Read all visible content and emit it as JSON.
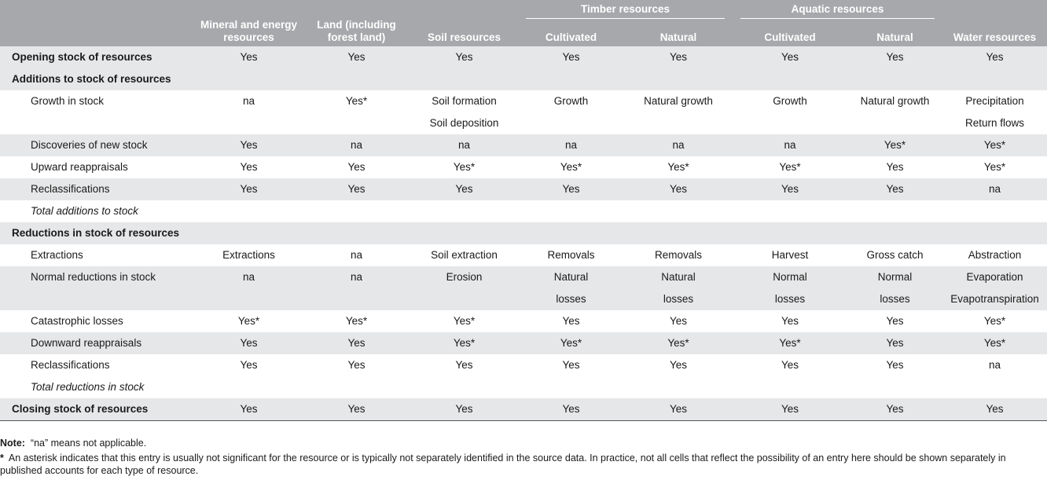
{
  "header": {
    "label_col": "",
    "mineral": "Mineral and energy resources",
    "land": "Land (including forest land)",
    "soil": "Soil resources",
    "timber_group": "Timber resources",
    "aquatic_group": "Aquatic resources",
    "timber_cultivated": "Cultivated",
    "timber_natural": "Natural",
    "aquatic_cultivated": "Cultivated",
    "aquatic_natural": "Natural",
    "water": "Water resources"
  },
  "rows": [
    {
      "label": "Opening stock of resources",
      "style": "bold",
      "cells": [
        "Yes",
        "Yes",
        "Yes",
        "Yes",
        "Yes",
        "Yes",
        "Yes",
        "Yes"
      ]
    },
    {
      "label": "Additions to stock of resources",
      "style": "bold",
      "cells": [
        "",
        "",
        "",
        "",
        "",
        "",
        "",
        ""
      ]
    },
    {
      "label": "Growth in stock",
      "style": "ind",
      "cells": [
        "na",
        "Yes*",
        "Soil formation",
        "Growth",
        "Natural growth",
        "Growth",
        "Natural growth",
        "Precipitation"
      ]
    },
    {
      "label": "",
      "style": "ind",
      "cells": [
        "",
        "",
        "Soil deposition",
        "",
        "",
        "",
        "",
        "Return flows"
      ]
    },
    {
      "label": "Discoveries of new stock",
      "style": "ind",
      "cells": [
        "Yes",
        "na",
        "na",
        "na",
        "na",
        "na",
        "Yes*",
        "Yes*"
      ]
    },
    {
      "label": "Upward reappraisals",
      "style": "ind",
      "cells": [
        "Yes",
        "Yes",
        "Yes*",
        "Yes*",
        "Yes*",
        "Yes*",
        "Yes",
        "Yes*"
      ]
    },
    {
      "label": "Reclassifications",
      "style": "ind",
      "cells": [
        "Yes",
        "Yes",
        "Yes",
        "Yes",
        "Yes",
        "Yes",
        "Yes",
        "na"
      ]
    },
    {
      "label": "Total additions to stock",
      "style": "it",
      "cells": [
        "",
        "",
        "",
        "",
        "",
        "",
        "",
        ""
      ]
    },
    {
      "label": "Reductions in stock of resources",
      "style": "bold",
      "cells": [
        "",
        "",
        "",
        "",
        "",
        "",
        "",
        ""
      ]
    },
    {
      "label": "Extractions",
      "style": "ind",
      "cells": [
        "Extractions",
        "na",
        "Soil extraction",
        "Removals",
        "Removals",
        "Harvest",
        "Gross catch",
        "Abstraction"
      ]
    },
    {
      "label": "Normal reductions in stock",
      "style": "ind",
      "cells": [
        "na",
        "na",
        "Erosion",
        "Natural",
        "Natural",
        "Normal",
        "Normal",
        "Evaporation"
      ]
    },
    {
      "label": "",
      "style": "ind",
      "cells": [
        "",
        "",
        "",
        "losses",
        "losses",
        "losses",
        "losses",
        "Evapotranspiration"
      ]
    },
    {
      "label": "Catastrophic losses",
      "style": "ind",
      "cells": [
        "Yes*",
        "Yes*",
        "Yes*",
        "Yes",
        "Yes",
        "Yes",
        "Yes",
        "Yes*"
      ]
    },
    {
      "label": "Downward reappraisals",
      "style": "ind",
      "cells": [
        "Yes",
        "Yes",
        "Yes*",
        "Yes*",
        "Yes*",
        "Yes*",
        "Yes",
        "Yes*"
      ]
    },
    {
      "label": "Reclassifications",
      "style": "ind",
      "cells": [
        "Yes",
        "Yes",
        "Yes",
        "Yes",
        "Yes",
        "Yes",
        "Yes",
        "na"
      ]
    },
    {
      "label": "Total reductions in stock",
      "style": "it",
      "cells": [
        "",
        "",
        "",
        "",
        "",
        "",
        "",
        ""
      ]
    },
    {
      "label": "Closing stock of resources",
      "style": "bold",
      "cells": [
        "Yes",
        "Yes",
        "Yes",
        "Yes",
        "Yes",
        "Yes",
        "Yes",
        "Yes"
      ]
    }
  ],
  "notes": {
    "note_label": "Note:",
    "note_text": "“na” means not applicable.",
    "star": "*",
    "footnote": "An asterisk indicates that this entry is usually not significant for the resource or is typically not separately identified in the source data. In practice, not all cells that reflect the possibility of an entry here should be shown separately in published accounts for each type of resource."
  }
}
